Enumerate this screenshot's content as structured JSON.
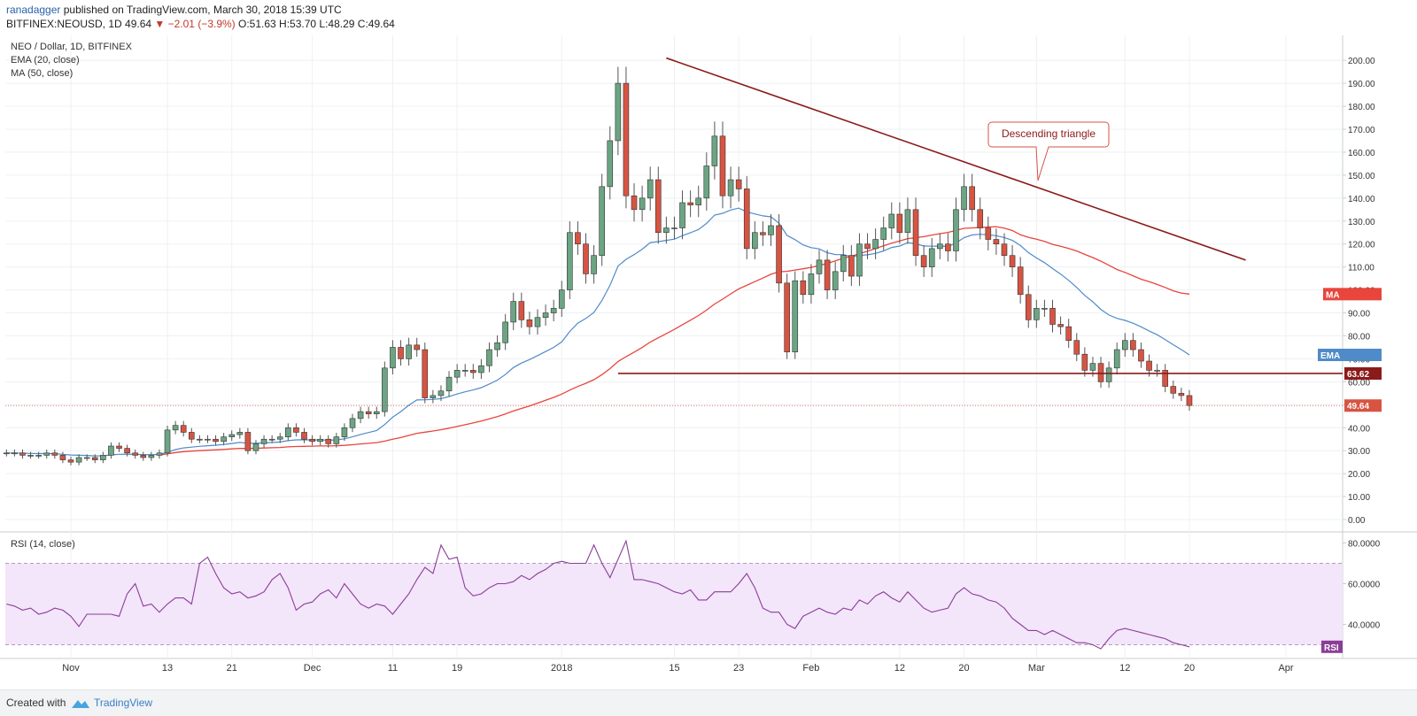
{
  "header": {
    "user": "ranadagger",
    "published": "published on TradingView.com, March 30, 2018 15:39 UTC",
    "symbol_line": "BITFINEX:NEOUSD, 1D",
    "last": "49.64",
    "change": "▼ −2.01 (−3.9%)",
    "ohlc": "O:51.63 H:53.70 L:48.29 C:49.64"
  },
  "footer": {
    "created_with": "Created with",
    "brand": "TradingView"
  },
  "colors": {
    "up": "#6ba583",
    "down": "#d75442",
    "ema": "#4f8bc9",
    "ma": "#e8453c",
    "trendline": "#8b1a1a",
    "rsi_line": "#8a3e97",
    "rsi_band": "#f3e5fa"
  },
  "chart_data": [
    {
      "type": "candlestick",
      "title": "NEO / Dollar, 1D, BITFINEX",
      "indicators": [
        "EMA (20, close)",
        "MA (50, close)"
      ],
      "y_ticks": [
        "200.00",
        "190.00",
        "180.00",
        "170.00",
        "160.00",
        "150.00",
        "140.00",
        "130.00",
        "120.00",
        "110.00",
        "100.00",
        "90.00",
        "80.00",
        "70.00",
        "60.00",
        "50.00",
        "40.00",
        "30.00",
        "20.00",
        "10.00",
        "0.00"
      ],
      "ylim": [
        -5,
        207
      ],
      "x_ticks": [
        {
          "label": "Nov",
          "date": "2017-11-01"
        },
        {
          "label": "13",
          "date": "2017-11-13"
        },
        {
          "label": "21",
          "date": "2017-11-21"
        },
        {
          "label": "Dec",
          "date": "2017-12-01"
        },
        {
          "label": "11",
          "date": "2017-12-11"
        },
        {
          "label": "19",
          "date": "2017-12-19"
        },
        {
          "label": "2018",
          "date": "2018-01-01"
        },
        {
          "label": "15",
          "date": "2018-01-15"
        },
        {
          "label": "23",
          "date": "2018-01-23"
        },
        {
          "label": "Feb",
          "date": "2018-02-01"
        },
        {
          "label": "12",
          "date": "2018-02-12"
        },
        {
          "label": "20",
          "date": "2018-02-20"
        },
        {
          "label": "Mar",
          "date": "2018-03-01"
        },
        {
          "label": "12",
          "date": "2018-03-12"
        },
        {
          "label": "20",
          "date": "2018-03-20"
        },
        {
          "label": "Apr",
          "date": "2018-04-01"
        }
      ],
      "start_date": "2017-10-24",
      "closes": [
        29,
        29,
        28,
        28,
        28,
        29,
        28,
        26,
        25,
        27,
        27,
        26,
        28,
        32,
        31,
        29,
        28,
        27,
        28,
        29,
        39,
        41,
        38,
        35,
        35,
        35,
        34,
        36,
        37,
        38,
        30,
        33,
        35,
        35,
        36,
        40,
        38,
        35,
        34,
        35,
        33,
        36,
        40,
        44,
        47,
        46,
        47,
        66,
        75,
        70,
        76,
        74,
        53,
        54,
        56,
        62,
        65,
        65,
        64,
        67,
        74,
        77,
        86,
        95,
        87,
        84,
        88,
        90,
        92,
        100,
        125,
        120,
        107,
        115,
        145,
        165,
        190,
        141,
        135,
        140,
        148,
        125,
        127,
        127,
        138,
        137,
        140,
        154,
        167,
        141,
        148,
        144,
        118,
        125,
        124,
        128,
        103,
        73,
        104,
        98,
        107,
        113,
        100,
        108,
        115,
        106,
        120,
        118,
        122,
        127,
        133,
        125,
        135,
        115,
        110,
        118,
        120,
        117,
        135,
        145,
        135,
        127,
        122,
        120,
        115,
        110,
        98,
        87,
        92,
        92,
        85,
        84,
        78,
        72,
        65,
        68,
        60,
        66,
        74,
        78,
        74,
        69,
        65,
        65,
        58,
        55,
        54,
        49.64
      ],
      "annotations": [
        {
          "text": "Descending triangle"
        },
        {
          "text": "63.62"
        },
        {
          "text": "49.64"
        },
        {
          "text": "MA"
        },
        {
          "text": "EMA"
        }
      ],
      "trendline": {
        "from": [
          "2018-01-14",
          201
        ],
        "to": [
          "2018-03-27",
          113
        ]
      },
      "support": 63.62,
      "grid": true
    },
    {
      "type": "line",
      "title": "RSI (14, close)",
      "y_ticks": [
        "80.0000",
        "60.0000",
        "40.0000"
      ],
      "ylim": [
        25,
        85
      ],
      "bands": [
        30,
        70
      ],
      "values": [
        50,
        49,
        47,
        48,
        45,
        46,
        48,
        47,
        44,
        39,
        45,
        45,
        45,
        45,
        44,
        55,
        60,
        49,
        50,
        46,
        50,
        53,
        53,
        50,
        70,
        73,
        65,
        58,
        55,
        56,
        53,
        54,
        56,
        62,
        65,
        58,
        47,
        50,
        51,
        55,
        57,
        53,
        60,
        55,
        50,
        48,
        50,
        49,
        45,
        50,
        55,
        62,
        68,
        65,
        79,
        72,
        73,
        58,
        54,
        55,
        58,
        60,
        60,
        61,
        64,
        62,
        65,
        67,
        70,
        71,
        70,
        70,
        70,
        79,
        70,
        63,
        72,
        81,
        62,
        62,
        61,
        60,
        58,
        56,
        55,
        57,
        52,
        52,
        56,
        56,
        56,
        60,
        65,
        58,
        48,
        46,
        46,
        40,
        38,
        44,
        46,
        48,
        46,
        45,
        48,
        47,
        52,
        50,
        54,
        56,
        53,
        51,
        56,
        52,
        48,
        46,
        47,
        48,
        55,
        58,
        55,
        54,
        52,
        51,
        48,
        43,
        40,
        37,
        37,
        35,
        37,
        35,
        33,
        31,
        31,
        30,
        28,
        33,
        37,
        38,
        37,
        36,
        35,
        34,
        33,
        31,
        30,
        29
      ]
    }
  ],
  "labels": {
    "rsi_tag": "RSI",
    "ma_tag": "MA",
    "ema_tag": "EMA",
    "support_tag": "63.62",
    "last_tag": "49.64",
    "callout": "Descending triangle"
  }
}
